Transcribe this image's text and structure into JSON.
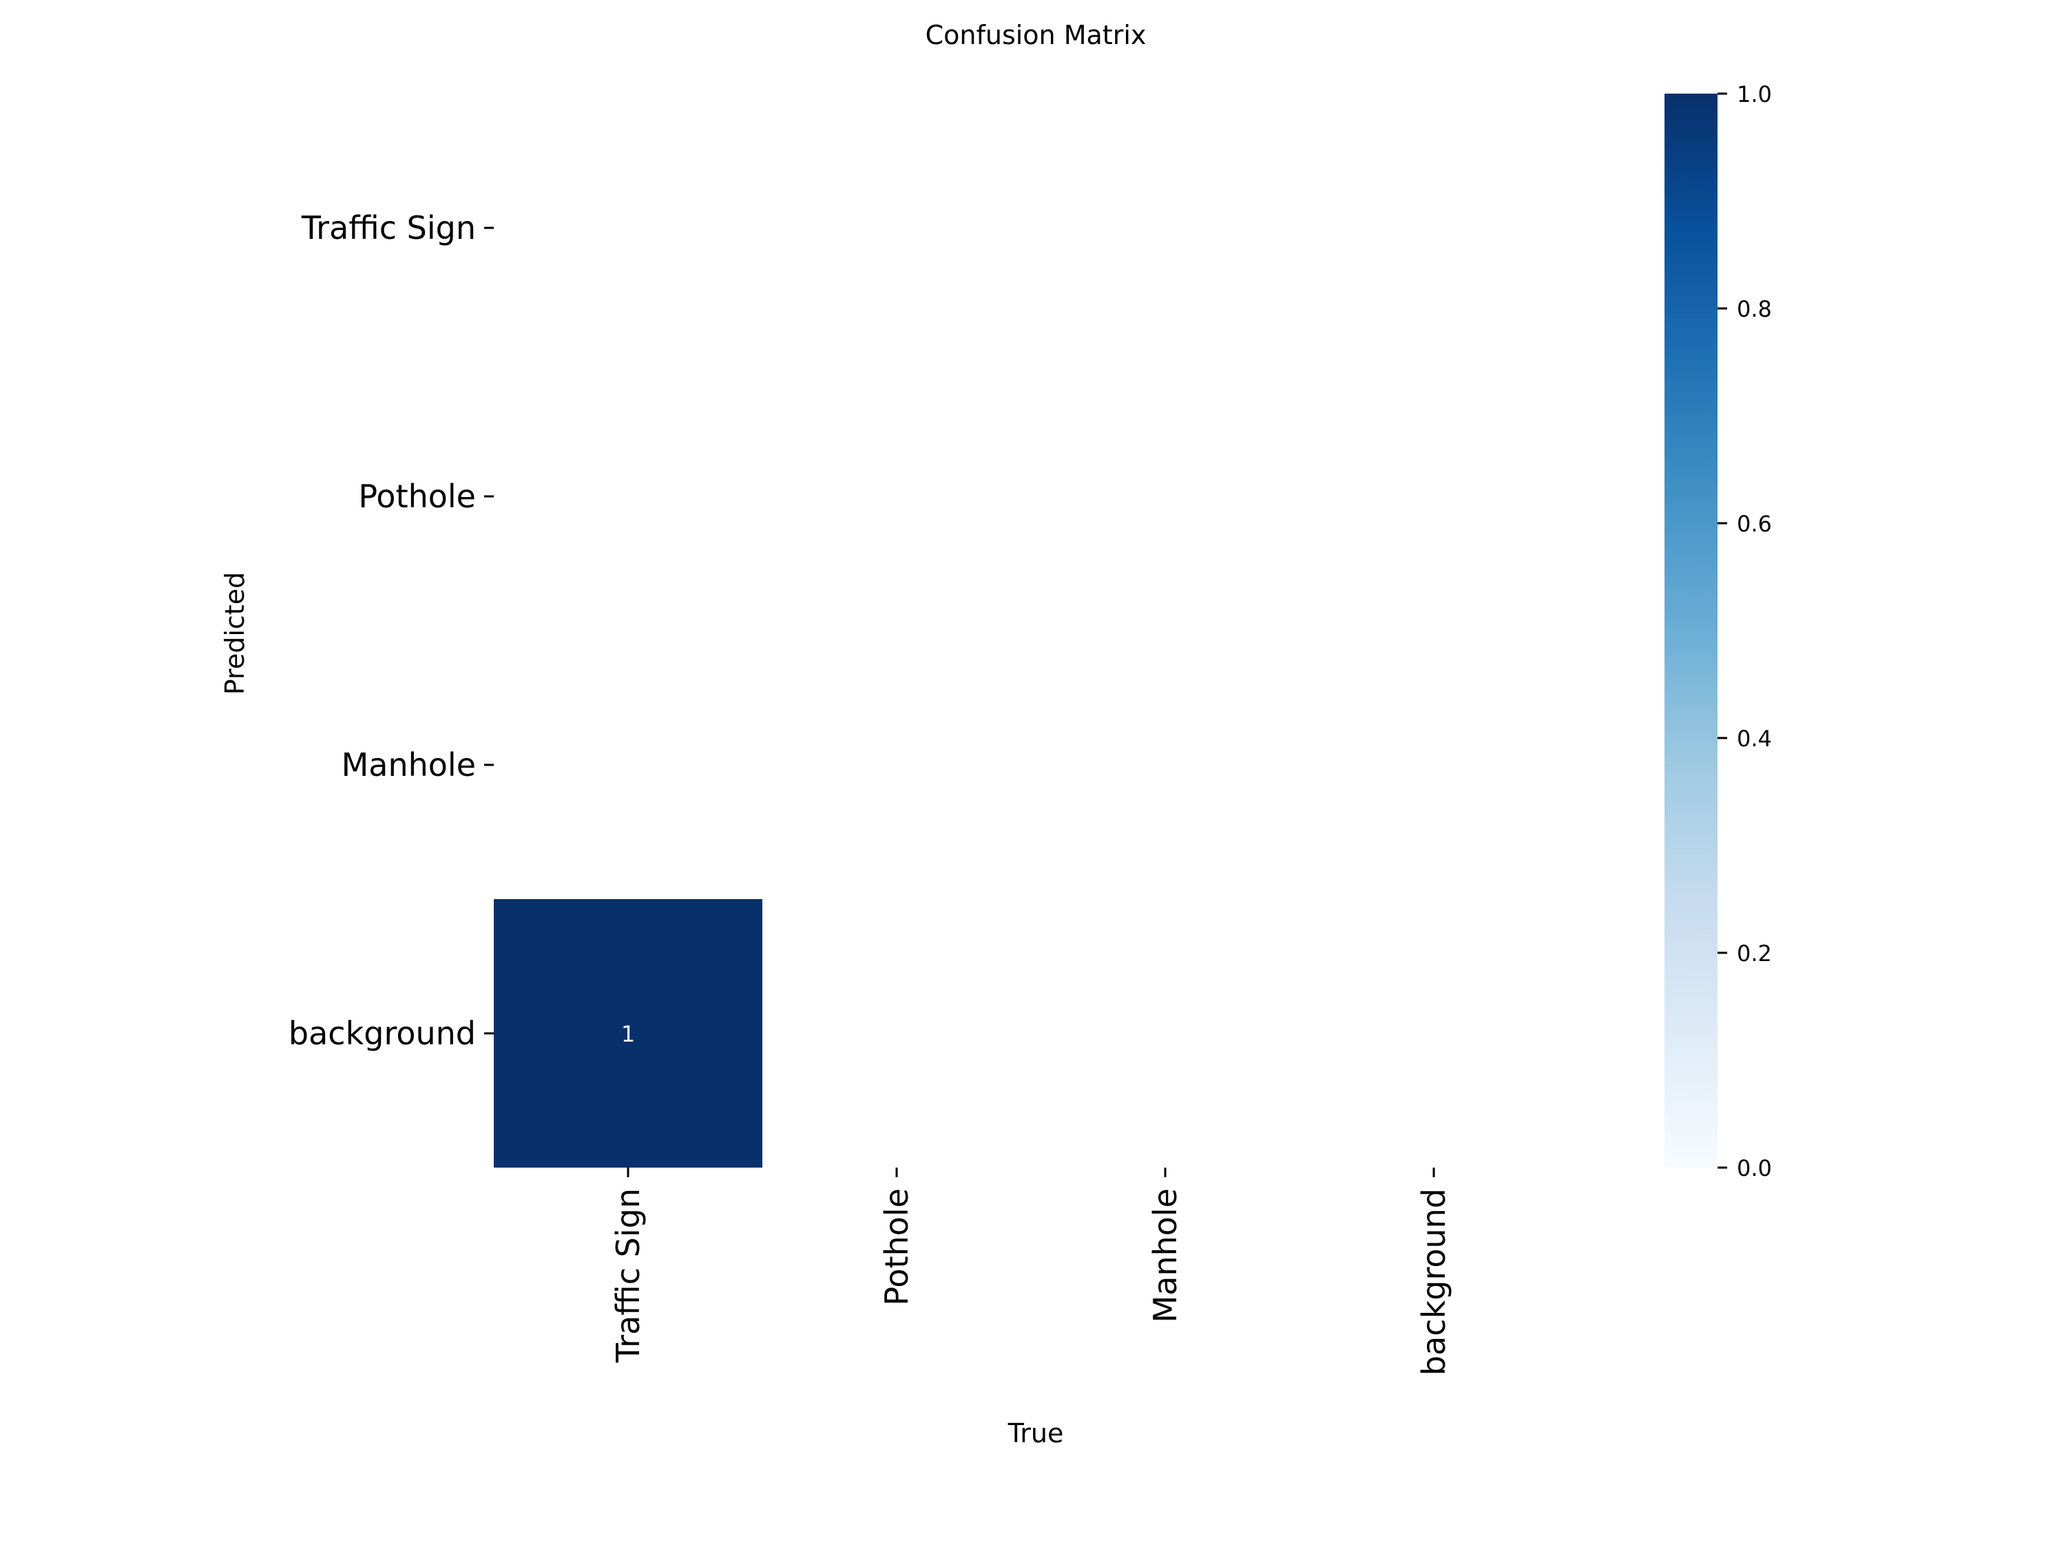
{
  "chart_data": {
    "type": "heatmap",
    "title": "Confusion Matrix",
    "xlabel": "True",
    "ylabel": "Predicted",
    "x_categories": [
      "Traffic Sign",
      "Pothole",
      "Manhole",
      "background"
    ],
    "y_categories": [
      "Traffic Sign",
      "Pothole",
      "Manhole",
      "background"
    ],
    "matrix": [
      [
        null,
        null,
        null,
        null
      ],
      [
        null,
        null,
        null,
        null
      ],
      [
        null,
        null,
        null,
        null
      ],
      [
        1,
        null,
        null,
        null
      ]
    ],
    "annotations": [
      [
        null,
        null,
        null,
        null
      ],
      [
        null,
        null,
        null,
        null
      ],
      [
        null,
        null,
        null,
        null
      ],
      [
        "1",
        null,
        null,
        null
      ]
    ],
    "colormap": "Blues",
    "color_low": "#f7fbff",
    "color_high": "#08306b",
    "colorbar": {
      "range": [
        0.0,
        1.0
      ],
      "ticks": [
        0.0,
        0.2,
        0.4,
        0.6,
        0.8,
        1.0
      ],
      "tick_labels": [
        "0.0",
        "0.2",
        "0.4",
        "0.6",
        "0.8",
        "1.0"
      ]
    },
    "grid": false
  }
}
